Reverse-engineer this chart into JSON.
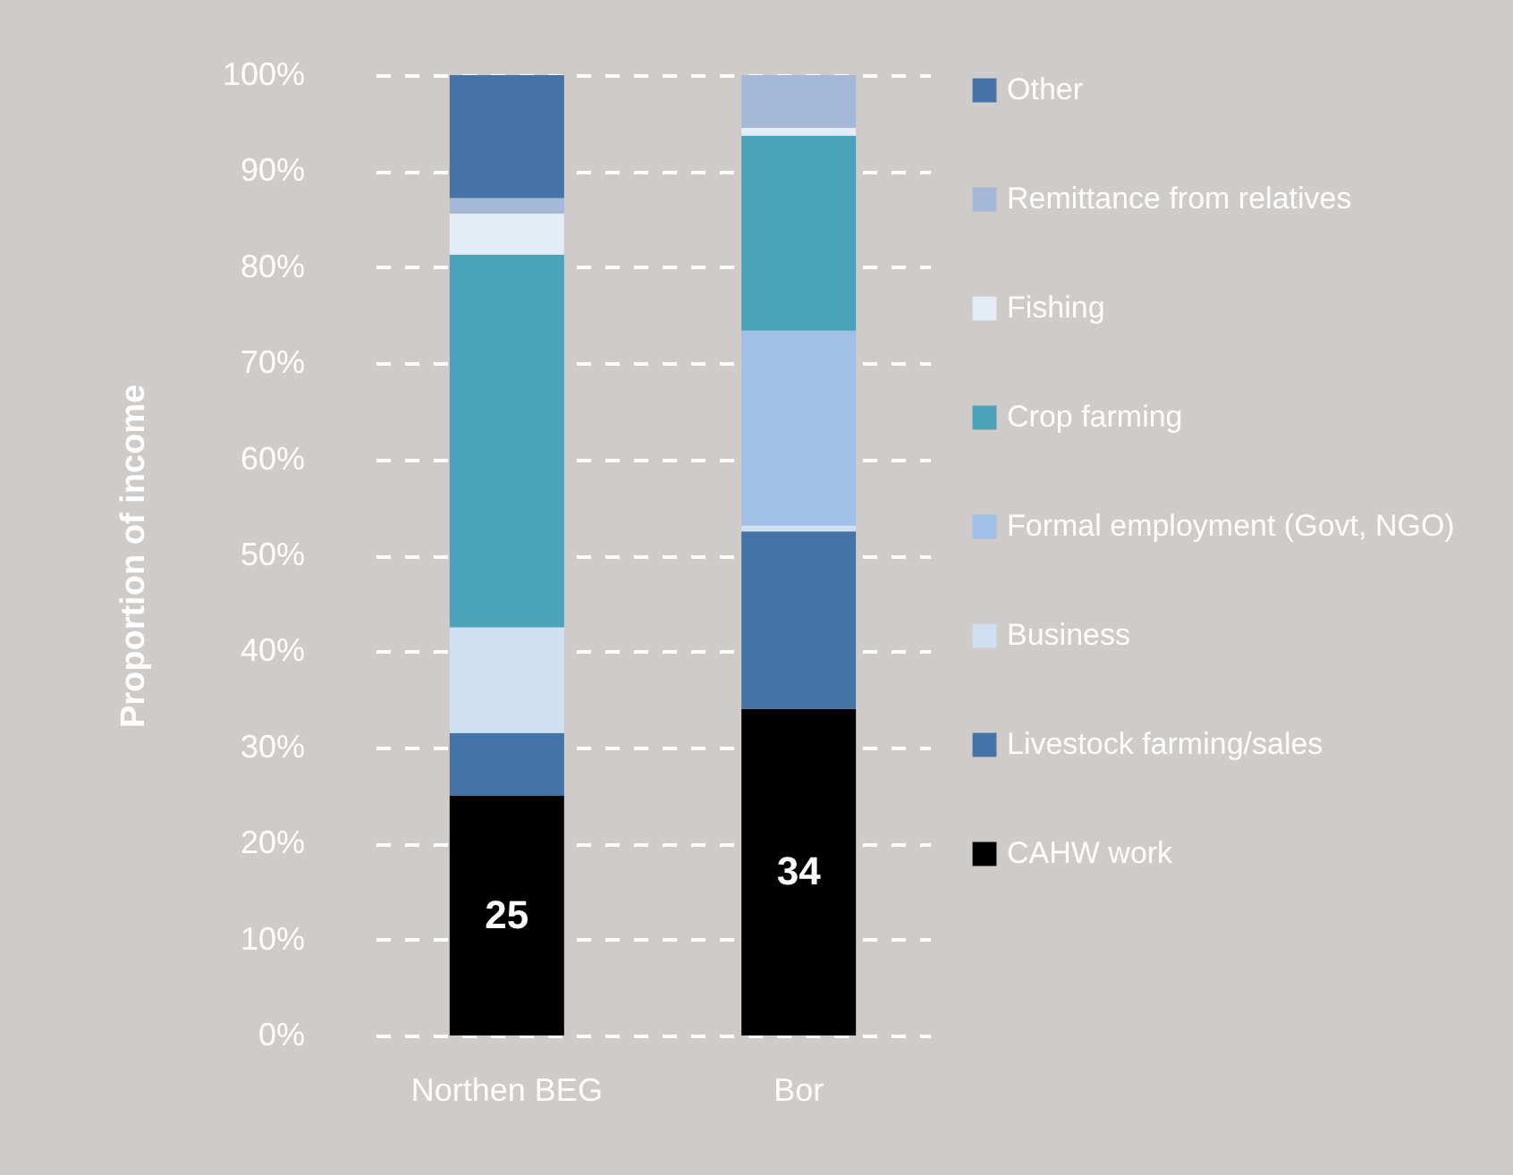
{
  "chart_data": {
    "type": "bar",
    "stacked": true,
    "ylabel": "Proportion of income",
    "categories": [
      "Northen BEG",
      "Bor"
    ],
    "ylim": [
      0,
      100
    ],
    "yticks": [
      {
        "value": 0,
        "label": "0%"
      },
      {
        "value": 10,
        "label": "10%"
      },
      {
        "value": 20,
        "label": "20%"
      },
      {
        "value": 30,
        "label": "30%"
      },
      {
        "value": 40,
        "label": "40%"
      },
      {
        "value": 50,
        "label": "50%"
      },
      {
        "value": 60,
        "label": "60%"
      },
      {
        "value": 70,
        "label": "70%"
      },
      {
        "value": 80,
        "label": "80%"
      },
      {
        "value": 90,
        "label": "90%"
      },
      {
        "value": 100,
        "label": "100%"
      }
    ],
    "grid": "y",
    "legend": "right",
    "series": [
      {
        "name": "CAHW work",
        "color": "#000000",
        "values": [
          25,
          34
        ],
        "value_labels": [
          "25",
          "34"
        ]
      },
      {
        "name": "Livestock farming/sales",
        "color": "#4473a5",
        "values": [
          6.5,
          18.5
        ]
      },
      {
        "name": "Business",
        "color": "#cfe0f2",
        "values": [
          11,
          0.6
        ]
      },
      {
        "name": "Formal employment (Govt, NGO)",
        "color": "#a0c0e6",
        "values": [
          0,
          20.3
        ]
      },
      {
        "name": "Crop farming",
        "color": "#4aa3b8",
        "values": [
          38.8,
          20.3
        ]
      },
      {
        "name": "Fishing",
        "color": "#e4ecf6",
        "values": [
          4.3,
          0.8
        ]
      },
      {
        "name": "Remittance from relatives",
        "color": "#a4b8d8",
        "values": [
          1.6,
          5.5
        ]
      },
      {
        "name": "Other",
        "color": "#4573a5",
        "values": [
          12.8,
          0
        ]
      }
    ]
  }
}
